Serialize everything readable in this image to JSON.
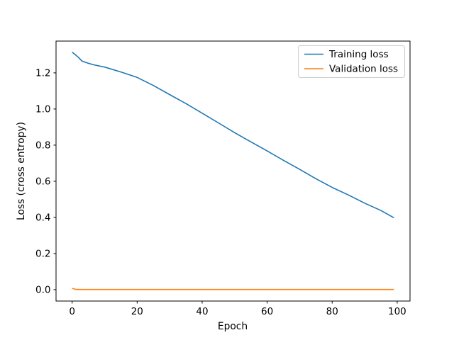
{
  "figure": {
    "background": "#ffffff",
    "axes_edge_color": "#000000",
    "legend_border_color": "#cccccc"
  },
  "chart_data": {
    "type": "line",
    "title": "",
    "xlabel": "Epoch",
    "ylabel": "Loss (cross entropy)",
    "xlim": [
      -4.95,
      103.95
    ],
    "ylim": [
      -0.063,
      1.376
    ],
    "grid": false,
    "legend_position": "upper right",
    "xticks": [
      {
        "v": 0,
        "label": "0"
      },
      {
        "v": 20,
        "label": "20"
      },
      {
        "v": 40,
        "label": "40"
      },
      {
        "v": 60,
        "label": "60"
      },
      {
        "v": 80,
        "label": "80"
      },
      {
        "v": 100,
        "label": "100"
      }
    ],
    "yticks": [
      {
        "v": 0.0,
        "label": "0.0"
      },
      {
        "v": 0.2,
        "label": "0.2"
      },
      {
        "v": 0.4,
        "label": "0.4"
      },
      {
        "v": 0.6,
        "label": "0.6"
      },
      {
        "v": 0.8,
        "label": "0.8"
      },
      {
        "v": 1.0,
        "label": "1.0"
      },
      {
        "v": 1.2,
        "label": "1.2"
      }
    ],
    "x": [
      0,
      1,
      2,
      3,
      4,
      5,
      7,
      10,
      15,
      20,
      25,
      30,
      35,
      40,
      45,
      50,
      55,
      60,
      65,
      70,
      75,
      80,
      85,
      90,
      95,
      99
    ],
    "series": [
      {
        "name": "Training loss",
        "color": "#1f77b4",
        "values": [
          1.315,
          1.3,
          1.285,
          1.266,
          1.259,
          1.253,
          1.243,
          1.232,
          1.205,
          1.175,
          1.13,
          1.08,
          1.03,
          0.977,
          0.923,
          0.869,
          0.818,
          0.768,
          0.716,
          0.666,
          0.614,
          0.566,
          0.524,
          0.479,
          0.438,
          0.398
        ]
      },
      {
        "name": "Validation loss",
        "color": "#ff7f0e",
        "values": [
          0.007,
          0.002,
          0.001,
          0.001,
          0.001,
          0.001,
          0.001,
          0.001,
          0.001,
          0.001,
          0.001,
          0.001,
          0.001,
          0.001,
          0.001,
          0.001,
          0.001,
          0.001,
          0.001,
          0.001,
          0.001,
          0.001,
          0.001,
          0.001,
          0.001,
          0.001
        ]
      }
    ]
  }
}
